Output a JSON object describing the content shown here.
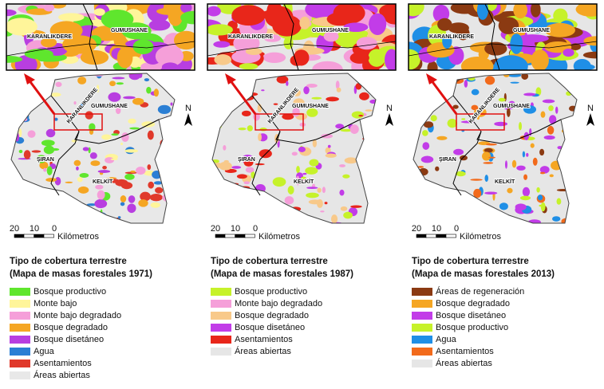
{
  "panels": [
    {
      "inset_labels": [
        "KARANLIKDERE",
        "GUMUSHANE"
      ],
      "map_labels": [
        "KARANLIKDERE",
        "GUMUSHANE",
        "ŞIRAN",
        "KELKİT"
      ],
      "north": "N",
      "scale": [
        "20",
        "10",
        "0",
        "Kilómetros"
      ],
      "legend_title": [
        "Tipo de cobertura terrestre",
        "(Mapa de masas forestales 1971)"
      ],
      "legend": [
        {
          "name": "Bosque productivo",
          "color": "#5fe62d"
        },
        {
          "name": "Monte bajo",
          "color": "#fff59a"
        },
        {
          "name": "Monte bajo degradado",
          "color": "#f59fd9"
        },
        {
          "name": "Bosque degradado",
          "color": "#f5a623"
        },
        {
          "name": "Bosque disetáneo",
          "color": "#b83ee0"
        },
        {
          "name": "Agua",
          "color": "#2b7fd4"
        },
        {
          "name": "Asentamientos",
          "color": "#e0392b"
        },
        {
          "name": "Áreas abiertas",
          "color": "#e8e8e8"
        }
      ]
    },
    {
      "inset_labels": [
        "KARANLIKDERE",
        "GUMUSHANE"
      ],
      "map_labels": [
        "KARANLIKDERE",
        "GUMUSHANE",
        "ŞIRAN",
        "KELKİT"
      ],
      "north": "N",
      "scale": [
        "20",
        "10",
        "0",
        "Kilómetros"
      ],
      "legend_title": [
        "Tipo de cobertura terrestre",
        "(Mapa de masas forestales 1987)"
      ],
      "legend": [
        {
          "name": "Bosque productivo",
          "color": "#c6f22a"
        },
        {
          "name": "Monte bajo degradado",
          "color": "#f59fd9"
        },
        {
          "name": "Bosque degradado",
          "color": "#f8c98a"
        },
        {
          "name": "Bosque disetáneo",
          "color": "#c23ce8"
        },
        {
          "name": "Asentamientos",
          "color": "#e8261a"
        },
        {
          "name": "Áreas abiertas",
          "color": "#e6e6e6"
        }
      ]
    },
    {
      "inset_labels": [
        "KARANLIKDERE",
        "GUMUSHANE"
      ],
      "map_labels": [
        "KARANLIKDERE",
        "GUMUSHANE",
        "ŞIRAN",
        "KELKİT"
      ],
      "north": "N",
      "scale": [
        "20",
        "10",
        "0",
        "Kilómetros"
      ],
      "legend_title": [
        "Tipo de cobertura terrestre",
        "(Mapa de masas forestales 2013)"
      ],
      "legend": [
        {
          "name": "Áreas de regeneración",
          "color": "#8b3a12"
        },
        {
          "name": "Bosque degradado",
          "color": "#f5a623"
        },
        {
          "name": "Bosque disetáneo",
          "color": "#c23ce8"
        },
        {
          "name": "Bosque productivo",
          "color": "#c6f22a"
        },
        {
          "name": "Agua",
          "color": "#1f8fe6"
        },
        {
          "name": "Asentamientos",
          "color": "#f26a1b"
        },
        {
          "name": "Áreas abiertas",
          "color": "#e6e6e6"
        }
      ]
    }
  ]
}
